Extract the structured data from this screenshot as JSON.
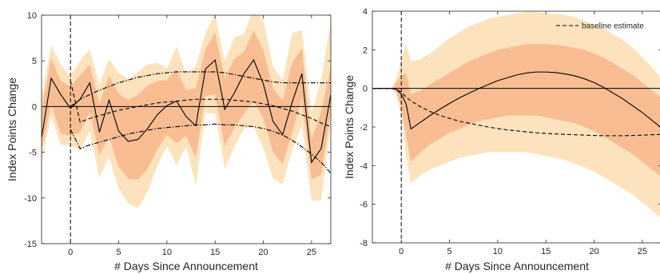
{
  "colors": {
    "outer_band": "#fde3bd",
    "inner_band": "#f8bd93",
    "line": "#000000"
  },
  "chart_data": [
    {
      "type": "line",
      "title": "",
      "xlabel": "# Days Since Announcement",
      "ylabel": "Index Points Change",
      "xlim": [
        -3,
        27
      ],
      "ylim": [
        -15,
        10
      ],
      "xticks": [
        0,
        5,
        10,
        15,
        20,
        25
      ],
      "yticks": [
        -15,
        -10,
        -5,
        0,
        5,
        10
      ],
      "grid": false,
      "reference_lines": {
        "horizontal_y": 0,
        "vertical_x_dashed": 0
      },
      "x": [
        -3,
        -2,
        -1,
        0,
        1,
        2,
        3,
        4,
        5,
        6,
        7,
        8,
        9,
        10,
        11,
        12,
        13,
        14,
        15,
        16,
        17,
        18,
        19,
        20,
        21,
        22,
        23,
        24,
        25,
        26,
        27
      ],
      "series": [
        {
          "style": "solid",
          "values": [
            -3.4,
            3.1,
            1.3,
            -0.2,
            0.8,
            2.6,
            -2.8,
            0.7,
            -2.7,
            -3.8,
            -3.6,
            -2.4,
            -0.9,
            0.1,
            0.6,
            -1.1,
            -2.1,
            4.1,
            5.1,
            -0.3,
            1.5,
            3.6,
            5.1,
            2.5,
            -1.6,
            -3.1,
            0.5,
            3.6,
            -6.1,
            -4.6,
            1.3
          ]
        },
        {
          "style": "dashed",
          "values": [
            null,
            null,
            null,
            2.8,
            -1.7,
            -1.3,
            -1.0,
            -0.7,
            -0.4,
            -0.2,
            0.0,
            0.2,
            0.4,
            0.5,
            0.6,
            0.7,
            0.8,
            0.8,
            0.8,
            0.8,
            0.7,
            0.6,
            0.5,
            0.3,
            0.1,
            -0.2,
            -0.5,
            -0.9,
            -1.3,
            -1.8,
            -2.2
          ]
        },
        {
          "style": "dashdot",
          "values": [
            null,
            null,
            null,
            0.0,
            0.8,
            1.3,
            1.8,
            2.2,
            2.6,
            2.9,
            3.2,
            3.4,
            3.6,
            3.7,
            3.8,
            3.8,
            3.8,
            3.8,
            3.8,
            3.7,
            3.5,
            3.3,
            3.1,
            2.9,
            2.7,
            2.6,
            2.6,
            2.6,
            2.6,
            2.6,
            2.6
          ]
        },
        {
          "style": "dashdot",
          "values": [
            null,
            null,
            null,
            -2.5,
            -4.6,
            -4.2,
            -3.9,
            -3.6,
            -3.3,
            -3.0,
            -2.8,
            -2.6,
            -2.4,
            -2.3,
            -2.2,
            -2.1,
            -2.0,
            -2.0,
            -1.9,
            -2.0,
            -2.0,
            -2.1,
            -2.2,
            -2.4,
            -2.7,
            -3.1,
            -3.7,
            -4.4,
            -5.2,
            -6.1,
            -7.3
          ]
        }
      ],
      "bands": [
        {
          "level": "outer",
          "lower": [
            -6,
            -1.1,
            -4.2,
            -4.3,
            -4.8,
            -2.7,
            -7.8,
            -5.5,
            -9.0,
            -10.6,
            -11.1,
            -9.3,
            -6.5,
            -4.3,
            -6.4,
            -4.4,
            -8.6,
            -0.7,
            -0.8,
            -6.8,
            -4.4,
            -2.4,
            -2.2,
            -4.5,
            -7.9,
            -8.5,
            -4.8,
            -2.0,
            -10.3,
            -10.3,
            -1.9
          ],
          "upper": [
            1.1,
            6.7,
            4.6,
            3.3,
            5.0,
            6.3,
            2.4,
            5.2,
            3.7,
            3.0,
            3.8,
            4.6,
            4.8,
            4.2,
            6.6,
            3.6,
            4.4,
            8.1,
            10.1,
            5.0,
            7.6,
            7.9,
            10.8,
            9.5,
            4.4,
            2.9,
            8.0,
            8.4,
            -0.7,
            2.9,
            9.4
          ]
        },
        {
          "level": "inner",
          "lower": [
            -4.8,
            0.2,
            -3.0,
            -3.2,
            -2.8,
            -0.6,
            -5.3,
            -3.3,
            -6.6,
            -7.9,
            -8.0,
            -6.8,
            -4.7,
            -3.1,
            -4.0,
            -3.2,
            -5.6,
            1.2,
            1.3,
            -4.3,
            -2.3,
            -0.8,
            0.6,
            -1.3,
            -5.0,
            -6.3,
            -2.8,
            0.8,
            -8.0,
            -7.4,
            -0.5
          ],
          "upper": [
            -0.4,
            5.3,
            2.8,
            2.2,
            3.4,
            4.6,
            0.3,
            3.4,
            1.4,
            0.7,
            1.3,
            2.3,
            2.8,
            2.9,
            4.1,
            1.8,
            2.0,
            6.3,
            8.1,
            3.1,
            5.2,
            6.0,
            8.3,
            6.2,
            2.0,
            0.7,
            4.8,
            6.4,
            -3.6,
            -0.6,
            4.4
          ]
        }
      ]
    },
    {
      "type": "line",
      "title": "",
      "xlabel": "# Days Since Announcement",
      "ylabel": "Index Points Change",
      "xlim": [
        -3,
        27
      ],
      "ylim": [
        -8,
        4
      ],
      "xticks": [
        0,
        5,
        10,
        15,
        20,
        25
      ],
      "yticks": [
        -8,
        -6,
        -4,
        -2,
        0,
        2,
        4
      ],
      "grid": false,
      "legend": {
        "position": "top-right",
        "entries": [
          {
            "style": "dashed",
            "label": "baseline estimate"
          }
        ]
      },
      "reference_lines": {
        "horizontal_y": 0,
        "vertical_x_dashed": 0
      },
      "x": [
        -3,
        -2,
        -1,
        -0.5,
        0,
        0.5,
        1,
        2,
        3,
        4,
        5,
        6,
        7,
        8,
        9,
        10,
        11,
        12,
        13,
        14,
        15,
        16,
        17,
        18,
        19,
        20,
        21,
        22,
        23,
        24,
        25,
        26,
        27
      ],
      "series": [
        {
          "style": "solid",
          "values": [
            0,
            0,
            0,
            -0.05,
            -0.3,
            -0.8,
            -2.1,
            -1.75,
            -1.4,
            -1.08,
            -0.78,
            -0.5,
            -0.25,
            -0.02,
            0.2,
            0.4,
            0.55,
            0.7,
            0.8,
            0.85,
            0.85,
            0.82,
            0.75,
            0.65,
            0.5,
            0.3,
            0.05,
            -0.25,
            -0.55,
            -0.9,
            -1.25,
            -1.65,
            -2.05
          ]
        },
        {
          "style": "dashed",
          "values": [
            0,
            0,
            0,
            -0.05,
            -0.2,
            -0.45,
            -0.65,
            -0.95,
            -1.2,
            -1.4,
            -1.55,
            -1.7,
            -1.8,
            -1.9,
            -2.0,
            -2.08,
            -2.15,
            -2.2,
            -2.25,
            -2.3,
            -2.33,
            -2.36,
            -2.38,
            -2.4,
            -2.42,
            -2.44,
            -2.45,
            -2.45,
            -2.45,
            -2.44,
            -2.42,
            -2.4,
            -2.38
          ]
        }
      ],
      "bands": [
        {
          "level": "outer",
          "lower": [
            0,
            0,
            0,
            -0.3,
            -1.5,
            -3.5,
            -4.9,
            -4.5,
            -4.2,
            -4.0,
            -3.8,
            -3.6,
            -3.5,
            -3.4,
            -3.3,
            -3.3,
            -3.3,
            -3.3,
            -3.3,
            -3.4,
            -3.5,
            -3.6,
            -3.7,
            -3.9,
            -4.1,
            -4.3,
            -4.6,
            -4.9,
            -5.2,
            -5.5,
            -5.9,
            -6.3,
            -6.8
          ],
          "upper": [
            0,
            0,
            0,
            0.5,
            1.5,
            2.3,
            1.4,
            1.5,
            1.8,
            2.2,
            2.6,
            2.9,
            3.2,
            3.4,
            3.6,
            3.7,
            3.8,
            3.9,
            3.95,
            3.95,
            3.9,
            3.85,
            3.8,
            3.7,
            3.5,
            3.3,
            3.1,
            2.8,
            2.5,
            2.1,
            1.6,
            1.1,
            0.5
          ]
        },
        {
          "level": "inner",
          "lower": [
            0,
            0,
            0,
            -0.2,
            -1.0,
            -2.4,
            -3.8,
            -3.3,
            -2.9,
            -2.6,
            -2.3,
            -2.1,
            -1.9,
            -1.7,
            -1.6,
            -1.5,
            -1.4,
            -1.4,
            -1.4,
            -1.4,
            -1.5,
            -1.6,
            -1.7,
            -1.8,
            -2.0,
            -2.2,
            -2.5,
            -2.8,
            -3.1,
            -3.4,
            -3.8,
            -4.2,
            -4.6
          ],
          "upper": [
            0,
            0,
            0,
            0.3,
            0.7,
            0.8,
            -0.3,
            -0.1,
            0.2,
            0.5,
            0.8,
            1.1,
            1.4,
            1.6,
            1.8,
            2.0,
            2.1,
            2.2,
            2.3,
            2.3,
            2.3,
            2.25,
            2.2,
            2.1,
            2.0,
            1.8,
            1.6,
            1.3,
            1.0,
            0.7,
            0.3,
            -0.1,
            -0.5
          ]
        }
      ]
    }
  ]
}
